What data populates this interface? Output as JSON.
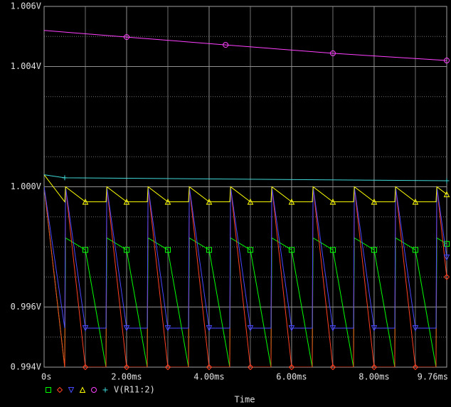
{
  "chart_data": {
    "type": "line",
    "xlabel": "Time",
    "xlim": [
      0,
      9.76
    ],
    "ylim": [
      0.994,
      1.006
    ],
    "xticks": [
      {
        "value": 0,
        "label": "0s"
      },
      {
        "value": 2,
        "label": "2.00ms"
      },
      {
        "value": 4,
        "label": "4.00ms"
      },
      {
        "value": 6,
        "label": "6.00ms"
      },
      {
        "value": 8,
        "label": "8.00ms"
      },
      {
        "value": 9.76,
        "label": "9.76ms"
      }
    ],
    "xminor": [
      1,
      3,
      5,
      7,
      9
    ],
    "yticks": [
      {
        "value": 0.994,
        "label": "0.994V"
      },
      {
        "value": 0.996,
        "label": "0.996V"
      },
      {
        "value": 1.0,
        "label": "1.000V"
      },
      {
        "value": 1.004,
        "label": "1.004V"
      },
      {
        "value": 1.006,
        "label": "1.006V"
      }
    ],
    "yminor": [
      0.995,
      0.997,
      0.998,
      0.999,
      1.001,
      1.002,
      1.003,
      1.005
    ],
    "grid": true,
    "series": [
      {
        "name": null,
        "color": "#00ff00",
        "marker": "square",
        "x": [
          0,
          0.5,
          0.52,
          1.0,
          1.5,
          1.52,
          2.0,
          2.5,
          2.52,
          3.0,
          3.5,
          3.52,
          4.0,
          4.5,
          4.52,
          5.0,
          5.5,
          5.52,
          6.0,
          6.5,
          6.52,
          7.0,
          7.5,
          7.52,
          8.0,
          8.5,
          8.52,
          9.0,
          9.5,
          9.52,
          9.76
        ],
        "values": [
          1.0,
          0.994,
          0.9983,
          0.9979,
          0.994,
          0.9983,
          0.9979,
          0.994,
          0.9983,
          0.9979,
          0.994,
          0.9983,
          0.9979,
          0.994,
          0.9983,
          0.9979,
          0.994,
          0.9983,
          0.9979,
          0.994,
          0.9983,
          0.9979,
          0.994,
          0.9983,
          0.9979,
          0.994,
          0.9983,
          0.9979,
          0.994,
          0.9983,
          0.9981
        ]
      },
      {
        "name": null,
        "color": "#ff4020",
        "marker": "diamond",
        "x": [
          0,
          0.5,
          0.52,
          1.0,
          1.5,
          1.52,
          2.0,
          2.5,
          2.52,
          3.0,
          3.5,
          3.52,
          4.0,
          4.5,
          4.52,
          5.0,
          5.5,
          5.52,
          6.0,
          6.5,
          6.52,
          7.0,
          7.5,
          7.52,
          8.0,
          8.5,
          8.52,
          9.0,
          9.5,
          9.52,
          9.76
        ],
        "values": [
          1.0,
          0.994,
          1.0,
          0.994,
          0.994,
          1.0,
          0.994,
          0.994,
          1.0,
          0.994,
          0.994,
          1.0,
          0.994,
          0.994,
          1.0,
          0.994,
          0.994,
          1.0,
          0.994,
          0.994,
          1.0,
          0.994,
          0.994,
          1.0,
          0.994,
          0.994,
          1.0,
          0.994,
          0.994,
          1.0,
          0.997
        ]
      },
      {
        "name": null,
        "color": "#4848ff",
        "marker": "triangle-down",
        "x": [
          0,
          0.5,
          0.52,
          1.0,
          1.5,
          1.52,
          2.0,
          2.5,
          2.52,
          3.0,
          3.5,
          3.52,
          4.0,
          4.5,
          4.52,
          5.0,
          5.5,
          5.52,
          6.0,
          6.5,
          6.52,
          7.0,
          7.5,
          7.52,
          8.0,
          8.5,
          8.52,
          9.0,
          9.5,
          9.52,
          9.76
        ],
        "values": [
          1.0,
          0.9953,
          1.0,
          0.9953,
          0.9953,
          1.0,
          0.9953,
          0.9953,
          1.0,
          0.9953,
          0.9953,
          1.0,
          0.9953,
          0.9953,
          1.0,
          0.9953,
          0.9953,
          1.0,
          0.9953,
          0.9953,
          1.0,
          0.9953,
          0.9953,
          1.0,
          0.9953,
          0.9953,
          1.0,
          0.9953,
          0.9953,
          1.0,
          0.99765
        ]
      },
      {
        "name": null,
        "color": "#ffff00",
        "marker": "triangle-up",
        "x": [
          0,
          0.5,
          0.52,
          1.0,
          1.5,
          1.52,
          2.0,
          2.5,
          2.52,
          3.0,
          3.5,
          3.52,
          4.0,
          4.5,
          4.52,
          5.0,
          5.5,
          5.52,
          6.0,
          6.5,
          6.52,
          7.0,
          7.5,
          7.52,
          8.0,
          8.5,
          8.52,
          9.0,
          9.5,
          9.52,
          9.76
        ],
        "values": [
          1.0004,
          0.9995,
          1.0,
          0.9995,
          0.9995,
          1.0,
          0.9995,
          0.9995,
          1.0,
          0.9995,
          0.9995,
          1.0,
          0.9995,
          0.9995,
          1.0,
          0.9995,
          0.9995,
          1.0,
          0.9995,
          0.9995,
          1.0,
          0.9995,
          0.9995,
          1.0,
          0.9995,
          0.9995,
          1.0,
          0.9995,
          0.9995,
          1.0,
          0.99975
        ]
      },
      {
        "name": null,
        "color": "#ff40ff",
        "marker": "circle",
        "x": [
          0,
          2.0,
          4.4,
          7.0,
          9.76
        ],
        "values": [
          1.0052,
          1.00498,
          1.00472,
          1.00444,
          1.0042
        ]
      },
      {
        "name": "V(R11:2)",
        "color": "#40d8d8",
        "marker": "plus",
        "x": [
          0,
          0.5,
          9.76
        ],
        "values": [
          1.0004,
          1.0003,
          1.0002
        ]
      }
    ]
  }
}
